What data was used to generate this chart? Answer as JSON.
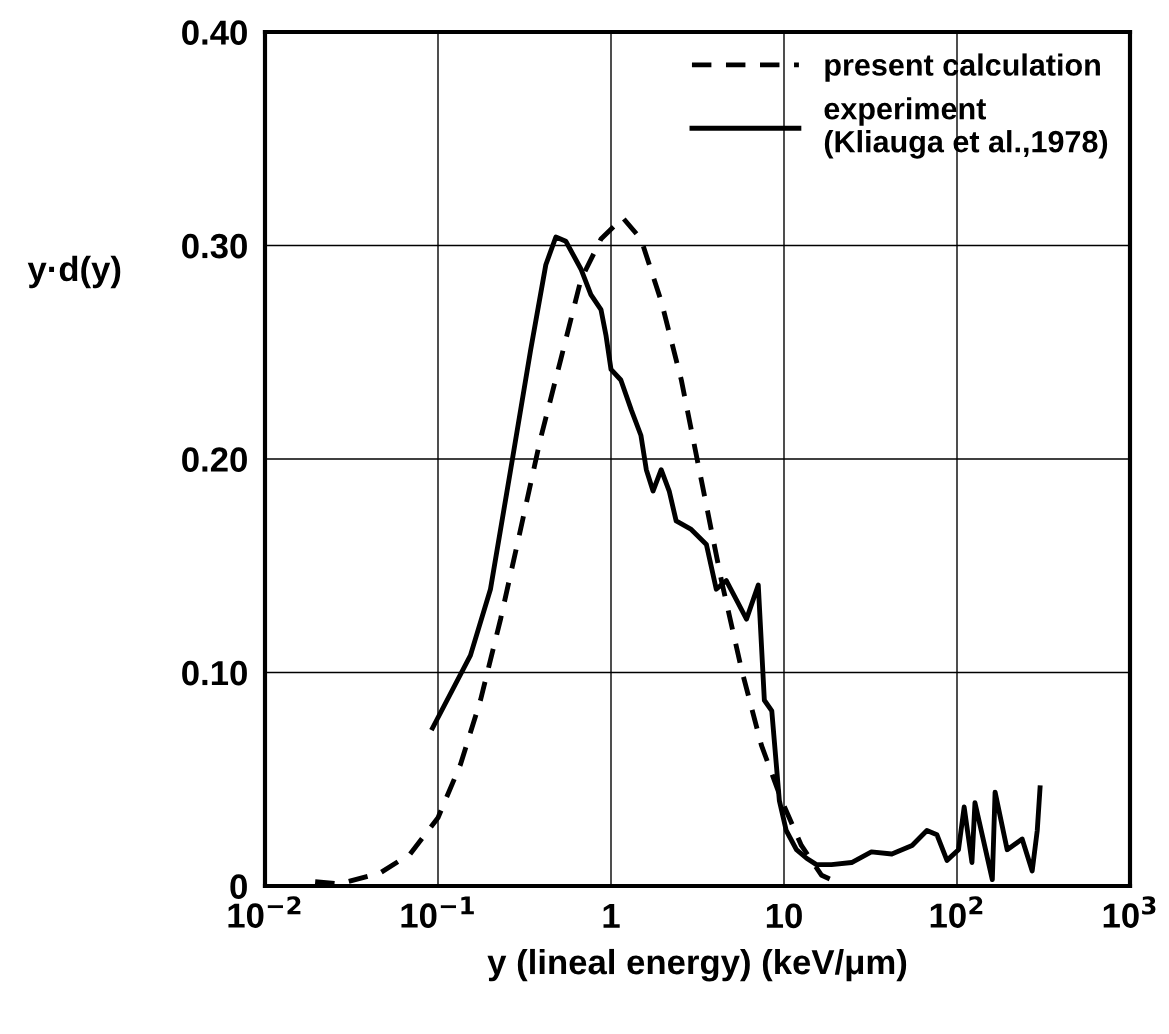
{
  "chart_data": {
    "type": "line",
    "xlabel": "y (lineal energy) (keV/μm)",
    "ylabel": "y·d(y)",
    "log": "x",
    "xlim": [
      0.01,
      1000
    ],
    "xticks": [
      {
        "value": 0.01,
        "label": "10$^{−2}$"
      },
      {
        "value": 0.1,
        "label": "10$^{−1}$"
      },
      1,
      10,
      {
        "value": 100,
        "label": "10$^{2}$"
      },
      {
        "value": 1000,
        "label": "10$^{3}$"
      }
    ],
    "ylim": [
      0,
      0.4
    ],
    "yticks": [
      0,
      {
        "value": 0.1,
        "label": "0.10"
      },
      {
        "value": 0.2,
        "label": "0.20"
      },
      {
        "value": 0.3,
        "label": "0.30"
      },
      {
        "value": 0.4,
        "label": "0.40"
      }
    ],
    "grid": true,
    "legend": "top right",
    "marker": "none",
    "series": [
      {
        "name": "present calculation",
        "color": "#000000",
        "line_style": "dashed",
        "x": [
          0.0195,
          0.027,
          0.046,
          0.069,
          0.1,
          0.135,
          0.176,
          0.23,
          0.3,
          0.39,
          0.51,
          0.67,
          0.875,
          1.17,
          1.49,
          1.95,
          2.55,
          3.33,
          4.35,
          5.7,
          7.4,
          9.7,
          12.6,
          16.5,
          20
        ],
        "values": [
          0.002,
          0.001,
          0.006,
          0.015,
          0.032,
          0.057,
          0.087,
          0.125,
          0.167,
          0.209,
          0.246,
          0.284,
          0.303,
          0.313,
          0.303,
          0.274,
          0.237,
          0.19,
          0.143,
          0.101,
          0.066,
          0.04,
          0.019,
          0.005,
          0.002
        ]
      },
      {
        "name": "experiment\n(Kliauga et al.,1978)",
        "color": "#000000",
        "line_style": "solid",
        "x": [
          0.093,
          0.154,
          0.201,
          0.263,
          0.343,
          0.42,
          0.48,
          0.548,
          0.67,
          0.765,
          0.875,
          0.935,
          1.0,
          1.14,
          1.31,
          1.49,
          1.6,
          1.75,
          1.95,
          2.17,
          2.38,
          2.91,
          3.56,
          4.06,
          4.64,
          5.31,
          6.07,
          7.1,
          7.7,
          8.5,
          9.4,
          10.3,
          11.8,
          13.5,
          15.4,
          18.8,
          24.6,
          32,
          42,
          55,
          67,
          76.6,
          87.5,
          102,
          110,
          122,
          127,
          160,
          166,
          195,
          238,
          272,
          291,
          302
        ],
        "values": [
          0.074,
          0.108,
          0.139,
          0.195,
          0.251,
          0.291,
          0.304,
          0.302,
          0.289,
          0.277,
          0.27,
          0.258,
          0.242,
          0.237,
          0.223,
          0.211,
          0.195,
          0.185,
          0.195,
          0.185,
          0.171,
          0.167,
          0.16,
          0.139,
          0.143,
          0.134,
          0.125,
          0.141,
          0.087,
          0.082,
          0.04,
          0.026,
          0.017,
          0.013,
          0.01,
          0.01,
          0.011,
          0.016,
          0.015,
          0.019,
          0.026,
          0.024,
          0.012,
          0.017,
          0.037,
          0.011,
          0.039,
          0.003,
          0.044,
          0.017,
          0.022,
          0.007,
          0.026,
          0.046
        ]
      }
    ]
  }
}
